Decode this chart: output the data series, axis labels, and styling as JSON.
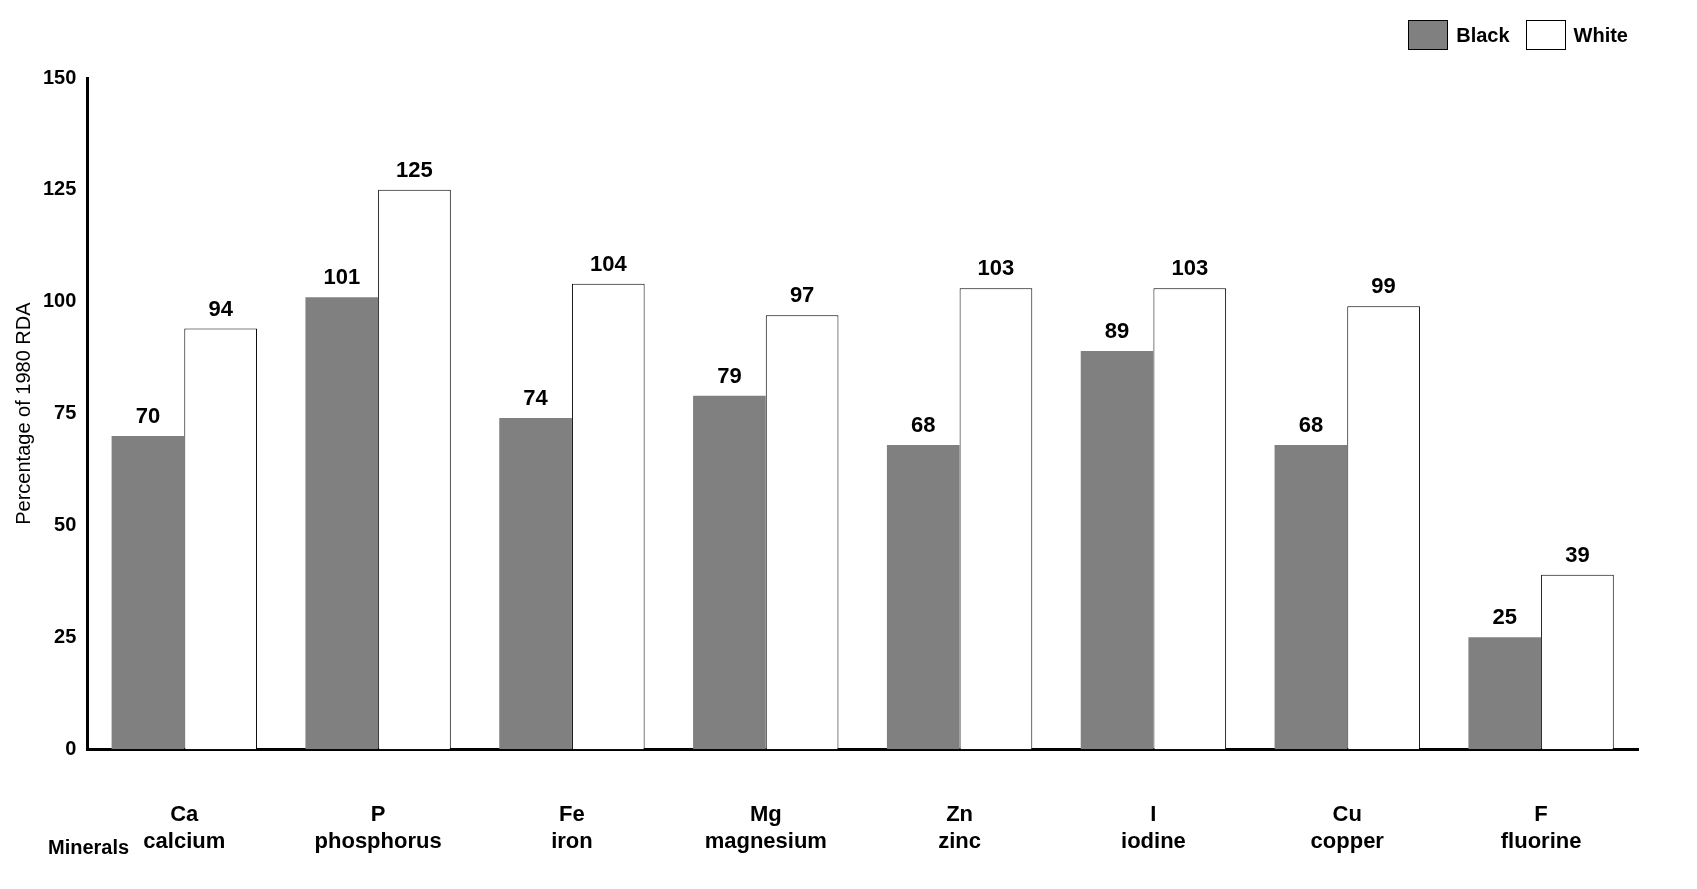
{
  "chart_data": {
    "type": "bar",
    "xlabel": "Minerals",
    "ylabel": "Percentage of 1980 RDA",
    "categories": [
      "Ca\ncalcium",
      "P\nphosphorus",
      "Fe\niron",
      "Mg\nmagnesium",
      "Zn\nzinc",
      "I\niodine",
      "Cu\ncopper",
      "F\nfluorine"
    ],
    "series": [
      {
        "name": "Black",
        "color": "#808080",
        "values": [
          70,
          101,
          74,
          79,
          68,
          89,
          68,
          25
        ]
      },
      {
        "name": "White",
        "color": "#ffffff",
        "values": [
          94,
          125,
          104,
          97,
          103,
          103,
          99,
          39
        ]
      }
    ],
    "ylim": [
      0,
      150
    ],
    "yticks": [
      0,
      25,
      50,
      75,
      100,
      125,
      150
    ],
    "grid": false,
    "legend": "top right",
    "data_labels": true
  }
}
